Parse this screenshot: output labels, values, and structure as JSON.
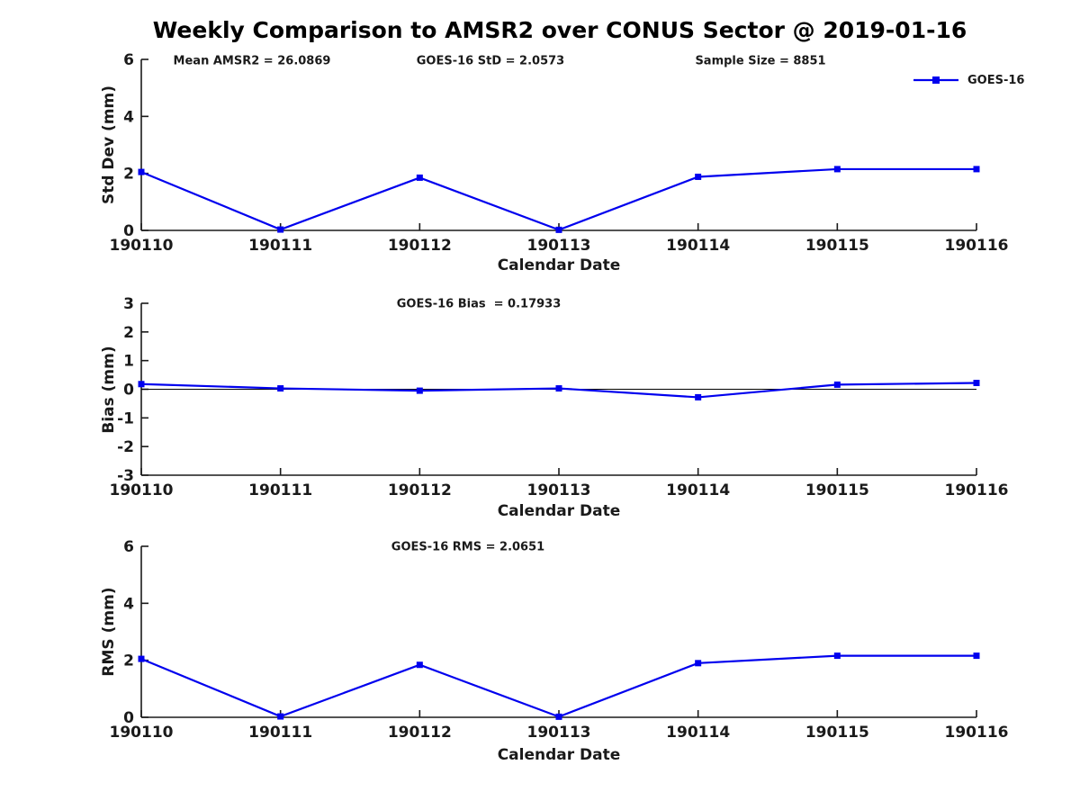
{
  "chart_data": [
    {
      "type": "line",
      "subplot": "std-dev",
      "title": "Weekly Comparison to AMSR2 over CONUS Sector @ 2019-01-16",
      "x_categories": [
        "190110",
        "190111",
        "190112",
        "190113",
        "190114",
        "190115",
        "190116"
      ],
      "xlabel": "Calendar Date",
      "ylabel": "Std Dev (mm)",
      "ylim": [
        0,
        6
      ],
      "yticks": [
        0,
        2,
        4,
        6
      ],
      "grid": false,
      "legend": {
        "position": "upper-right",
        "label": "GOES-16"
      },
      "series": [
        {
          "name": "GOES-16",
          "color": "#0000EE",
          "marker": "square",
          "values": [
            2.05,
            0.03,
            1.85,
            0.02,
            1.88,
            2.15,
            2.15
          ]
        }
      ],
      "annotations": [
        {
          "text": "Mean AMSR2 = 26.0869"
        },
        {
          "text": "GOES-16 StD = 2.0573"
        },
        {
          "text": "Sample Size = 8851"
        }
      ]
    },
    {
      "type": "line",
      "subplot": "bias",
      "x_categories": [
        "190110",
        "190111",
        "190112",
        "190113",
        "190114",
        "190115",
        "190116"
      ],
      "xlabel": "Calendar Date",
      "ylabel": "Bias (mm)",
      "ylim": [
        -3,
        3
      ],
      "yticks": [
        -3,
        -2,
        -1,
        0,
        1,
        2,
        3
      ],
      "zero_line": true,
      "grid": false,
      "series": [
        {
          "name": "GOES-16",
          "color": "#0000EE",
          "marker": "square",
          "values": [
            0.18,
            0.03,
            -0.05,
            0.03,
            -0.28,
            0.16,
            0.22
          ]
        }
      ],
      "annotations": [
        {
          "text": "GOES-16 Bias  = 0.17933"
        }
      ]
    },
    {
      "type": "line",
      "subplot": "rms",
      "x_categories": [
        "190110",
        "190111",
        "190112",
        "190113",
        "190114",
        "190115",
        "190116"
      ],
      "xlabel": "Calendar Date",
      "ylabel": "RMS (mm)",
      "ylim": [
        0,
        6
      ],
      "yticks": [
        0,
        2,
        4,
        6
      ],
      "grid": false,
      "series": [
        {
          "name": "GOES-16",
          "color": "#0000EE",
          "marker": "square",
          "values": [
            2.05,
            0.03,
            1.84,
            0.02,
            1.9,
            2.16,
            2.16
          ]
        }
      ],
      "annotations": [
        {
          "text": "GOES-16 RMS = 2.0651"
        }
      ]
    }
  ],
  "colors": {
    "line": "#0000EE",
    "axis_text": "#1a1a1a",
    "title": "#000000"
  }
}
